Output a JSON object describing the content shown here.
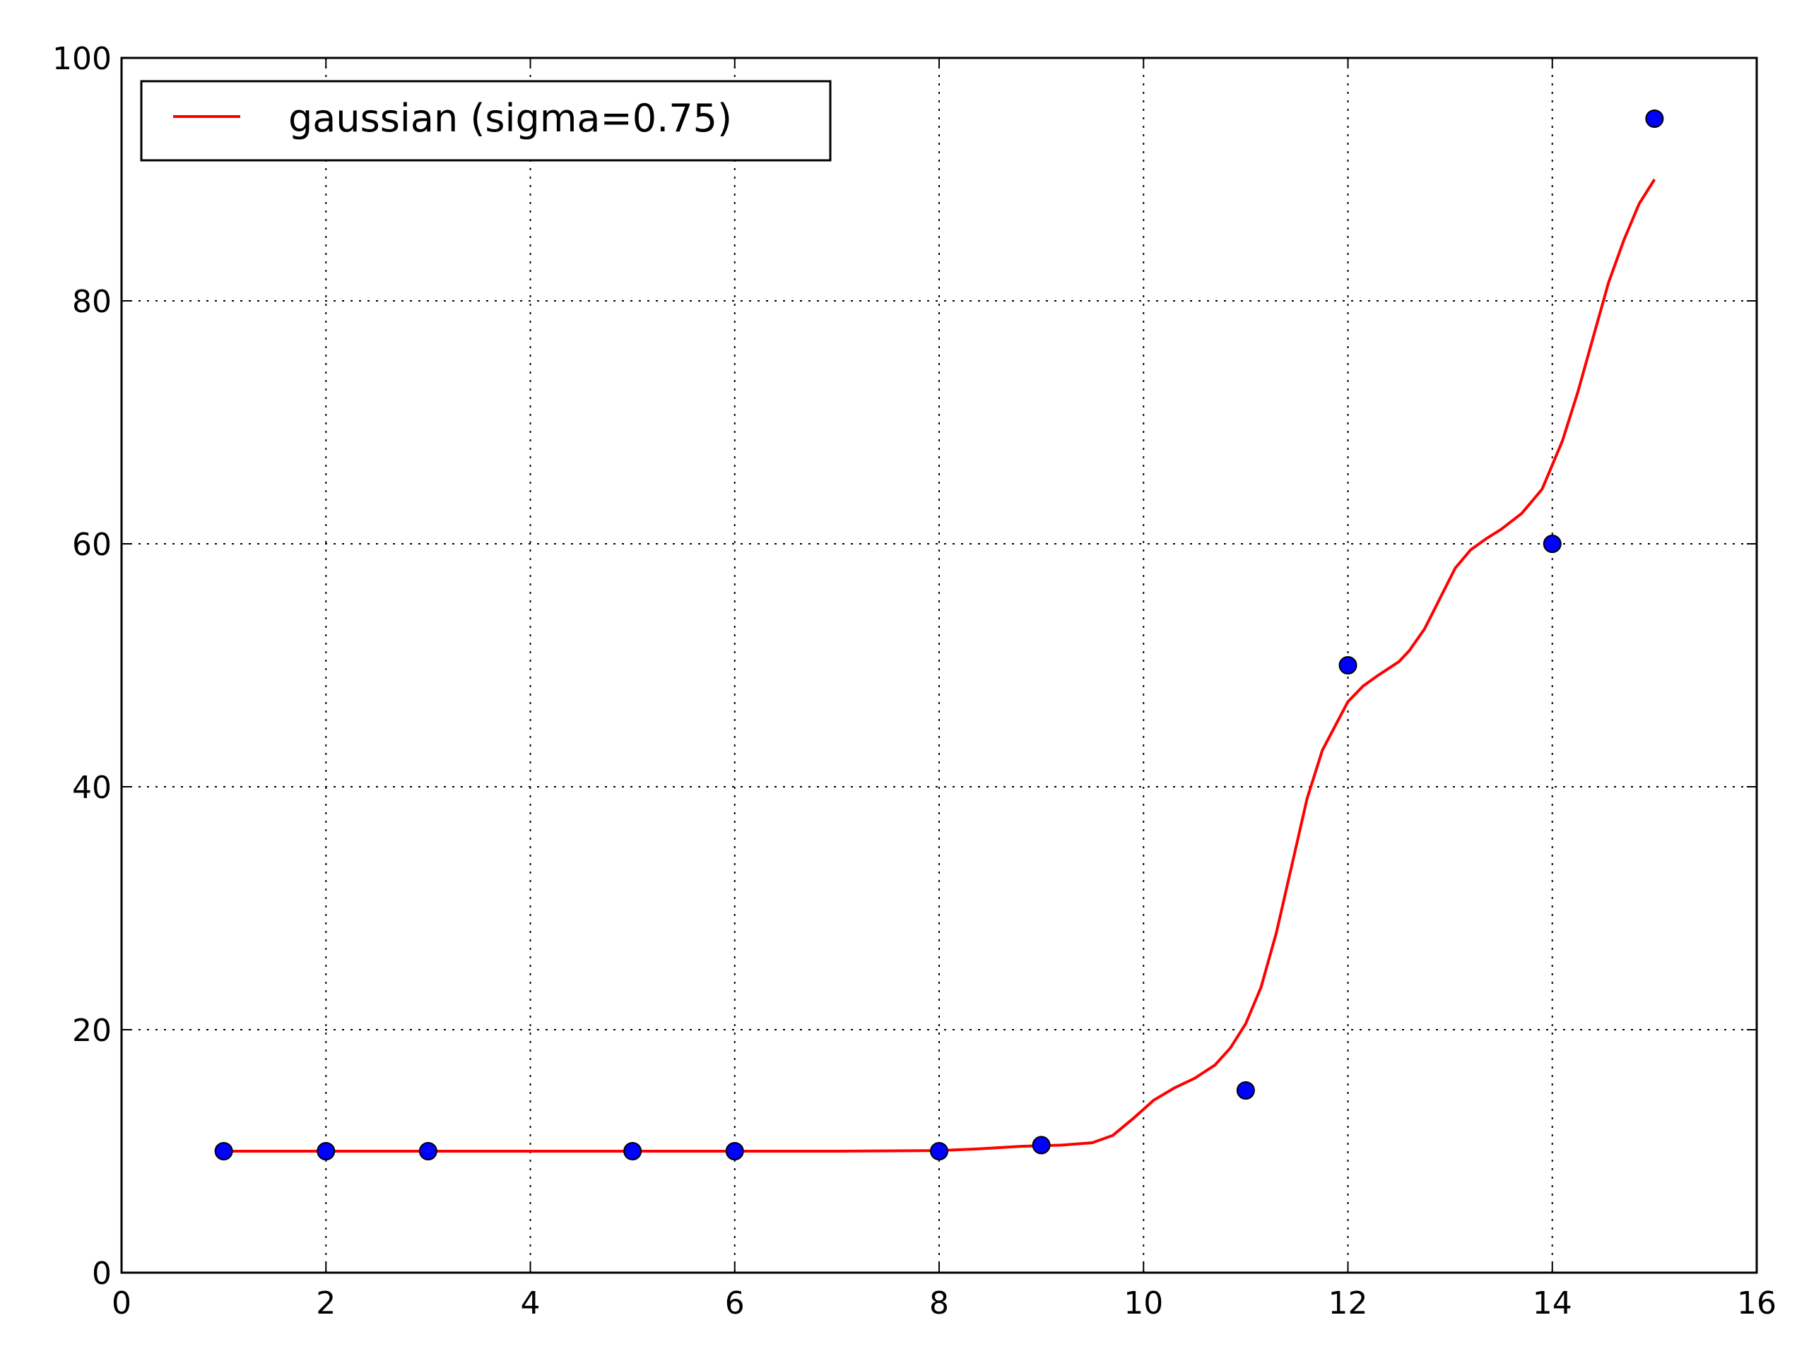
{
  "chart_data": {
    "type": "scatter",
    "title": "",
    "xlabel": "",
    "ylabel": "",
    "xlim": [
      0,
      16
    ],
    "ylim": [
      0,
      100
    ],
    "xticks": [
      0,
      2,
      4,
      6,
      8,
      10,
      12,
      14,
      16
    ],
    "yticks": [
      0,
      20,
      40,
      60,
      80,
      100
    ],
    "x_tick_labels": [
      "0",
      "2",
      "4",
      "6",
      "8",
      "10",
      "12",
      "14",
      "16"
    ],
    "y_tick_labels": [
      "0",
      "20",
      "40",
      "60",
      "80",
      "100"
    ],
    "grid": true,
    "legend": {
      "position": "top-left",
      "entries": [
        "gaussian (sigma=0.75)"
      ]
    },
    "series": [
      {
        "kind": "scatter",
        "color": "#0000ff",
        "x": [
          1,
          2,
          3,
          5,
          6,
          8,
          9,
          11,
          12,
          14,
          15
        ],
        "y": [
          10,
          10,
          10,
          10,
          10,
          10,
          10.5,
          15,
          50,
          60,
          95
        ]
      },
      {
        "kind": "line",
        "name": "gaussian (sigma=0.75)",
        "color": "#ff0000",
        "x": [
          1,
          2,
          3,
          4,
          5,
          6,
          7,
          8,
          8.4,
          8.8,
          9.2,
          9.5,
          9.7,
          9.9,
          10.1,
          10.3,
          10.5,
          10.7,
          10.85,
          11.0,
          11.15,
          11.3,
          11.45,
          11.6,
          11.75,
          11.9,
          12.0,
          12.15,
          12.3,
          12.5,
          12.6,
          12.75,
          12.9,
          13.05,
          13.2,
          13.35,
          13.5,
          13.7,
          13.9,
          14.0,
          14.1,
          14.25,
          14.4,
          14.55,
          14.7,
          14.85,
          15.0
        ],
        "y": [
          10,
          10,
          10,
          10,
          10,
          10,
          10,
          10.05,
          10.2,
          10.4,
          10.5,
          10.7,
          11.3,
          12.7,
          14.2,
          15.2,
          16.0,
          17.1,
          18.5,
          20.5,
          23.5,
          28.0,
          33.5,
          39.0,
          43.0,
          45.4,
          47.0,
          48.3,
          49.2,
          50.3,
          51.2,
          53.0,
          55.5,
          58.0,
          59.5,
          60.4,
          61.2,
          62.5,
          64.5,
          66.5,
          68.5,
          72.5,
          77.0,
          81.5,
          85.0,
          88.0,
          90.0
        ]
      }
    ]
  }
}
